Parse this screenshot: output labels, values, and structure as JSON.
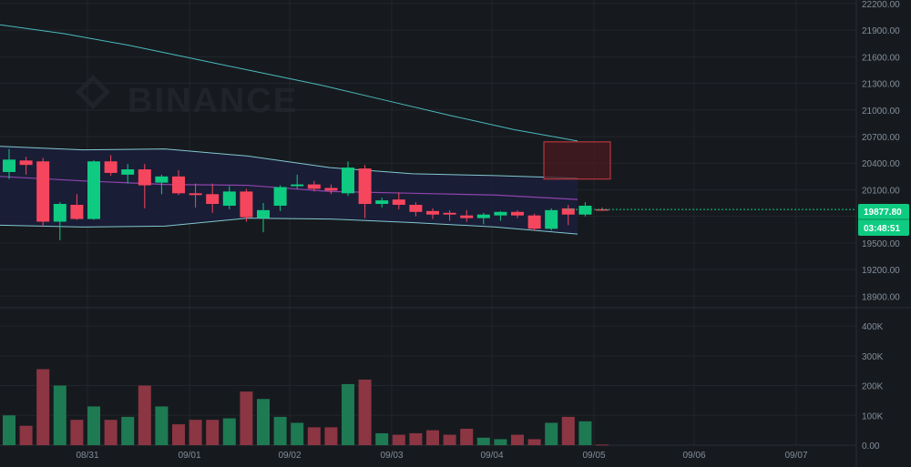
{
  "watermark": {
    "text": "BINANCE"
  },
  "colors": {
    "background": "#161a1e",
    "grid": "#22262c",
    "up": "#0ecb81",
    "down": "#f6465d",
    "vol_up": "#1e7a53",
    "vol_down": "#8c3543",
    "ma_long": "#4bb9bd",
    "ma_mid": "#8e44ad",
    "ma_short": "#c0a0a8",
    "band": "#82c8d0",
    "band_fill": "#1b1e38",
    "box_fill": "#4a1a20",
    "box_stroke": "#d03a42",
    "axis_text": "#848e9c",
    "price_tag": "#0ecb81"
  },
  "chart_data": {
    "type": "candlestick",
    "price_axis": {
      "ticks": [
        18900,
        19200,
        19500,
        19800,
        20100,
        20400,
        20700,
        21000,
        21300,
        21600,
        21900,
        22200
      ],
      "tick_labels": [
        "18900.00",
        "19200.00",
        "19500.00",
        "19800.00",
        "20100.00",
        "20400.00",
        "20700.00",
        "21000.00",
        "21300.00",
        "21600.00",
        "21900.00",
        "22200.00"
      ],
      "range": [
        18780,
        22240
      ]
    },
    "volume_axis": {
      "ticks": [
        0,
        100000,
        200000,
        300000,
        400000
      ],
      "tick_labels": [
        "0.00",
        "100K",
        "200K",
        "300K",
        "400K"
      ],
      "range": [
        0,
        440000
      ]
    },
    "time_axis": {
      "labels": [
        "08/31",
        "09/01",
        "09/02",
        "09/03",
        "09/04",
        "09/05",
        "09/06",
        "09/07"
      ]
    },
    "last_price": {
      "label": "19877.80",
      "value": 19877.8
    },
    "countdown": "03:48:51",
    "candles": [
      {
        "o": 20300,
        "h": 20560,
        "l": 20220,
        "c": 20440,
        "v": 100000
      },
      {
        "o": 20430,
        "h": 20470,
        "l": 20270,
        "c": 20380,
        "v": 65000
      },
      {
        "o": 20420,
        "h": 20460,
        "l": 19680,
        "c": 19740,
        "v": 255000
      },
      {
        "o": 19740,
        "h": 19960,
        "l": 19530,
        "c": 19940,
        "v": 200000
      },
      {
        "o": 19930,
        "h": 20050,
        "l": 19760,
        "c": 19770,
        "v": 85000
      },
      {
        "o": 19770,
        "h": 20430,
        "l": 19760,
        "c": 20420,
        "v": 130000
      },
      {
        "o": 20420,
        "h": 20490,
        "l": 20260,
        "c": 20290,
        "v": 85000
      },
      {
        "o": 20270,
        "h": 20390,
        "l": 20170,
        "c": 20330,
        "v": 95000
      },
      {
        "o": 20330,
        "h": 20390,
        "l": 19890,
        "c": 20150,
        "v": 200000
      },
      {
        "o": 20180,
        "h": 20270,
        "l": 20050,
        "c": 20250,
        "v": 130000
      },
      {
        "o": 20250,
        "h": 20320,
        "l": 20040,
        "c": 20060,
        "v": 70000
      },
      {
        "o": 20060,
        "h": 20170,
        "l": 19900,
        "c": 20040,
        "v": 85000
      },
      {
        "o": 20050,
        "h": 20170,
        "l": 19840,
        "c": 19940,
        "v": 85000
      },
      {
        "o": 19920,
        "h": 20140,
        "l": 19880,
        "c": 20080,
        "v": 90000
      },
      {
        "o": 20080,
        "h": 20110,
        "l": 19740,
        "c": 19790,
        "v": 180000
      },
      {
        "o": 19780,
        "h": 19950,
        "l": 19620,
        "c": 19870,
        "v": 155000
      },
      {
        "o": 19920,
        "h": 20150,
        "l": 19860,
        "c": 20130,
        "v": 95000
      },
      {
        "o": 20140,
        "h": 20270,
        "l": 20110,
        "c": 20160,
        "v": 75000
      },
      {
        "o": 20160,
        "h": 20200,
        "l": 20080,
        "c": 20110,
        "v": 60000
      },
      {
        "o": 20120,
        "h": 20160,
        "l": 20050,
        "c": 20090,
        "v": 60000
      },
      {
        "o": 20060,
        "h": 20420,
        "l": 20030,
        "c": 20350,
        "v": 205000
      },
      {
        "o": 20340,
        "h": 20380,
        "l": 19780,
        "c": 19940,
        "v": 220000
      },
      {
        "o": 19940,
        "h": 20010,
        "l": 19900,
        "c": 19980,
        "v": 40000
      },
      {
        "o": 19990,
        "h": 20070,
        "l": 19880,
        "c": 19930,
        "v": 35000
      },
      {
        "o": 19930,
        "h": 19960,
        "l": 19800,
        "c": 19850,
        "v": 40000
      },
      {
        "o": 19860,
        "h": 19890,
        "l": 19770,
        "c": 19820,
        "v": 50000
      },
      {
        "o": 19840,
        "h": 19870,
        "l": 19750,
        "c": 19820,
        "v": 35000
      },
      {
        "o": 19810,
        "h": 19870,
        "l": 19740,
        "c": 19780,
        "v": 55000
      },
      {
        "o": 19780,
        "h": 19840,
        "l": 19710,
        "c": 19820,
        "v": 25000
      },
      {
        "o": 19810,
        "h": 19860,
        "l": 19750,
        "c": 19850,
        "v": 20000
      },
      {
        "o": 19850,
        "h": 19870,
        "l": 19780,
        "c": 19810,
        "v": 35000
      },
      {
        "o": 19810,
        "h": 19830,
        "l": 19640,
        "c": 19660,
        "v": 20000
      },
      {
        "o": 19660,
        "h": 19890,
        "l": 19640,
        "c": 19870,
        "v": 75000
      },
      {
        "o": 19890,
        "h": 19930,
        "l": 19700,
        "c": 19820,
        "v": 95000
      },
      {
        "o": 19820,
        "h": 19960,
        "l": 19800,
        "c": 19920,
        "v": 80000
      },
      {
        "o": 19880,
        "h": 19900,
        "l": 19860,
        "c": 19878,
        "v": 2000
      }
    ],
    "ma_long": [
      21960,
      21860,
      21730,
      21580,
      21430,
      21280,
      21110,
      20940,
      20780,
      20650
    ],
    "band_upper": [
      20590,
      20550,
      20560,
      20480,
      20350,
      20280,
      20260,
      20230
    ],
    "band_lower": [
      19700,
      19680,
      19690,
      19780,
      19770,
      19730,
      19680,
      19600
    ],
    "ma_mid": [
      20250,
      20200,
      20160,
      20150,
      20080,
      20060,
      20040,
      19990
    ],
    "highlight_box": {
      "price_top": 20640,
      "price_bottom": 20220
    }
  }
}
